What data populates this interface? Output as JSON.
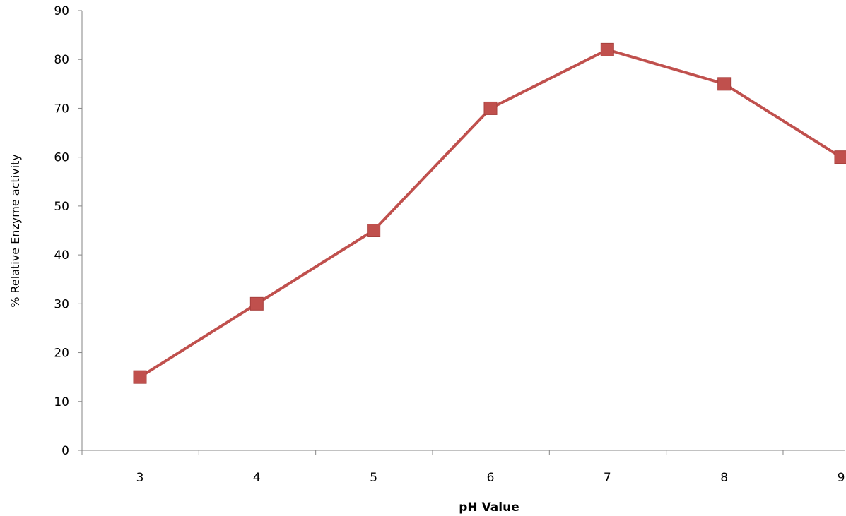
{
  "chart_data": {
    "type": "line",
    "title": "",
    "xlabel": "pH Value",
    "ylabel": "% Relative Enzyme activity",
    "categories": [
      "3",
      "4",
      "5",
      "6",
      "7",
      "8",
      "9"
    ],
    "series": [
      {
        "values": [
          15,
          30,
          45,
          70,
          82,
          75,
          60
        ],
        "color": "#C0504D",
        "marker": "square"
      }
    ],
    "ylim": [
      0,
      90
    ],
    "yticks": [
      0,
      10,
      20,
      30,
      40,
      50,
      60,
      70,
      80,
      90
    ],
    "grid": false,
    "legend": "none"
  }
}
